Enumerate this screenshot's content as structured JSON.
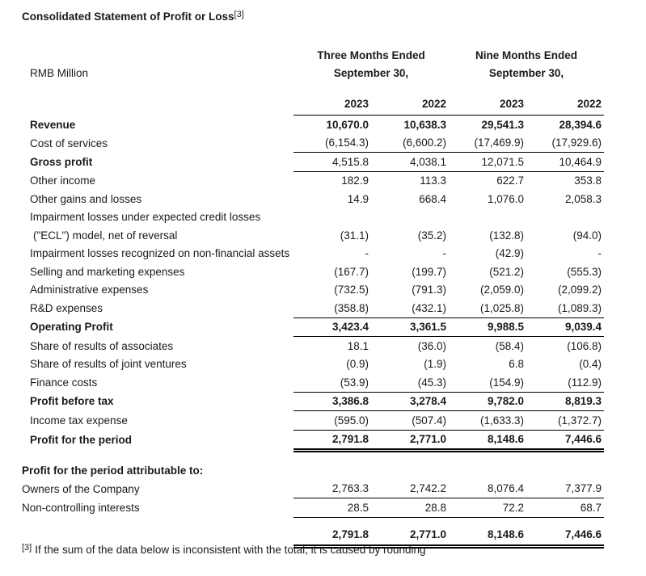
{
  "title": {
    "text": "Consolidated Statement of Profit or Loss",
    "footnote_ref": "[3]"
  },
  "table": {
    "unit_label": "RMB Million",
    "period_groups": [
      {
        "line1": "Three Months Ended",
        "line2": "September 30,"
      },
      {
        "line1": "Nine Months Ended",
        "line2": "September 30,"
      }
    ],
    "year_columns": [
      "2023",
      "2022",
      "2023",
      "2022"
    ],
    "rows": [
      {
        "label": "Revenue",
        "values": [
          "10,670.0",
          "10,638.3",
          "29,541.3",
          "28,394.6"
        ],
        "bold_label": true,
        "bold_values": true
      },
      {
        "label": "Cost of services",
        "values": [
          "(6,154.3)",
          "(6,600.2)",
          "(17,469.9)",
          "(17,929.6)"
        ],
        "rule": "single"
      },
      {
        "label": "Gross profit",
        "values": [
          "4,515.8",
          "4,038.1",
          "12,071.5",
          "10,464.9"
        ],
        "bold_label": true,
        "rule": "single"
      },
      {
        "label": "Other income",
        "values": [
          "182.9",
          "113.3",
          "622.7",
          "353.8"
        ]
      },
      {
        "label": "Other gains and losses",
        "values": [
          "14.9",
          "668.4",
          "1,076.0",
          "2,058.3"
        ]
      },
      {
        "label": "Impairment losses under expected credit losses",
        "values": [
          "",
          "",
          "",
          ""
        ]
      },
      {
        "label": "(\"ECL\") model, net of reversal",
        "values": [
          "(31.1)",
          "(35.2)",
          "(132.8)",
          "(94.0)"
        ],
        "indent": true
      },
      {
        "label": "Impairment losses recognized on non-financial assets",
        "values": [
          "-",
          "-",
          "(42.9)",
          "-"
        ]
      },
      {
        "label": "Selling and marketing expenses",
        "values": [
          "(167.7)",
          "(199.7)",
          "(521.2)",
          "(555.3)"
        ]
      },
      {
        "label": "Administrative expenses",
        "values": [
          "(732.5)",
          "(791.3)",
          "(2,059.0)",
          "(2,099.2)"
        ]
      },
      {
        "label": "R&D expenses",
        "values": [
          "(358.8)",
          "(432.1)",
          "(1,025.8)",
          "(1,089.3)"
        ],
        "rule": "single"
      },
      {
        "label": "Operating Profit",
        "values": [
          "3,423.4",
          "3,361.5",
          "9,988.5",
          "9,039.4"
        ],
        "bold_label": true,
        "bold_values": true,
        "rule": "single"
      },
      {
        "label": "Share of results of associates",
        "values": [
          "18.1",
          "(36.0)",
          "(58.4)",
          "(106.8)"
        ]
      },
      {
        "label": "Share of results of joint ventures",
        "values": [
          "(0.9)",
          "(1.9)",
          "6.8",
          "(0.4)"
        ]
      },
      {
        "label": "Finance costs",
        "values": [
          "(53.9)",
          "(45.3)",
          "(154.9)",
          "(112.9)"
        ],
        "rule": "single"
      },
      {
        "label": "Profit before tax",
        "values": [
          "3,386.8",
          "3,278.4",
          "9,782.0",
          "8,819.3"
        ],
        "bold_label": true,
        "bold_values": true,
        "rule": "single"
      },
      {
        "label": "Income tax expense",
        "values": [
          "(595.0)",
          "(507.4)",
          "(1,633.3)",
          "(1,372.7)"
        ],
        "rule": "single"
      },
      {
        "label": "Profit for the period",
        "values": [
          "2,791.8",
          "2,771.0",
          "8,148.6",
          "7,446.6"
        ],
        "bold_label": true,
        "bold_values": true,
        "rule": "double"
      },
      {
        "type": "spacer"
      },
      {
        "label": "Profit for the period attributable to:",
        "values": [
          "",
          "",
          "",
          ""
        ],
        "bold_label": true,
        "outdent": true
      },
      {
        "label": "Owners of the Company",
        "values": [
          "2,763.3",
          "2,742.2",
          "8,076.4",
          "7,377.9"
        ],
        "outdent": true,
        "rule": "single"
      },
      {
        "label": "Non-controlling interests",
        "values": [
          "28.5",
          "28.8",
          "72.2",
          "68.7"
        ],
        "outdent": true,
        "rule": "single"
      },
      {
        "label": "",
        "values": [
          "2,791.8",
          "2,771.0",
          "8,148.6",
          "7,446.6"
        ],
        "bold_values": true,
        "rule": "double",
        "tall": true
      }
    ]
  },
  "footnote": {
    "ref": "[3]",
    "text": "If the sum of the data below is inconsistent with the total, it is caused by rounding"
  }
}
